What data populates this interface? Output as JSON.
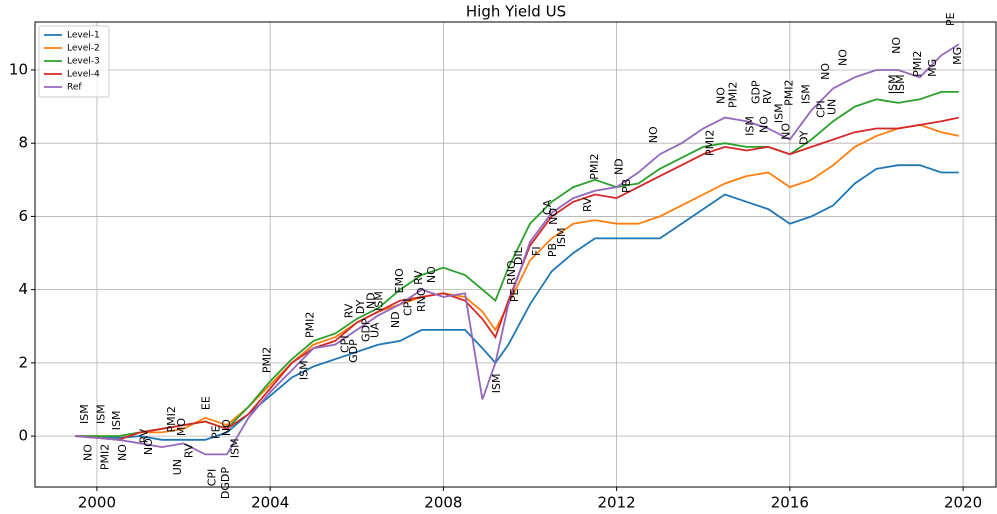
{
  "chart_data": {
    "type": "line",
    "title": "High Yield US",
    "x": [
      1999.5,
      2000,
      2000.5,
      2001,
      2001.5,
      2002,
      2002.5,
      2003,
      2003.5,
      2004,
      2004.5,
      2005,
      2005.5,
      2006,
      2006.5,
      2007,
      2007.5,
      2008,
      2008.5,
      2008.9,
      2009.2,
      2009.5,
      2010,
      2010.5,
      2011,
      2011.5,
      2012,
      2012.5,
      2013,
      2013.5,
      2014,
      2014.5,
      2015,
      2015.5,
      2016,
      2016.5,
      2017,
      2017.5,
      2018,
      2018.5,
      2019,
      2019.5,
      2019.9
    ],
    "series": [
      {
        "name": "Level-1",
        "color": "#1f77b4",
        "values": [
          0,
          0,
          -0.05,
          0,
          -0.1,
          -0.1,
          -0.1,
          0.1,
          0.6,
          1.1,
          1.6,
          1.9,
          2.1,
          2.3,
          2.5,
          2.6,
          2.9,
          2.9,
          2.9,
          2.4,
          2.0,
          2.5,
          3.6,
          4.5,
          5.0,
          5.4,
          5.4,
          5.4,
          5.4,
          5.8,
          6.2,
          6.6,
          6.4,
          6.2,
          5.8,
          6.0,
          6.3,
          6.9,
          7.3,
          7.4,
          7.4,
          7.2,
          7.2
        ]
      },
      {
        "name": "Level-2",
        "color": "#ff7f0e",
        "values": [
          0,
          0,
          0,
          0.1,
          0.1,
          0.2,
          0.5,
          0.3,
          0.8,
          1.4,
          2.0,
          2.5,
          2.7,
          3.1,
          3.4,
          3.6,
          3.8,
          3.9,
          3.8,
          3.4,
          2.9,
          3.6,
          4.8,
          5.4,
          5.8,
          5.9,
          5.8,
          5.8,
          6.0,
          6.3,
          6.6,
          6.9,
          7.1,
          7.2,
          6.8,
          7.0,
          7.4,
          7.9,
          8.2,
          8.4,
          8.5,
          8.3,
          8.2
        ]
      },
      {
        "name": "Level-3",
        "color": "#2ca02c",
        "values": [
          0,
          0,
          0,
          0.1,
          0.2,
          0.3,
          0.4,
          0.2,
          0.8,
          1.5,
          2.1,
          2.6,
          2.8,
          3.2,
          3.5,
          4.0,
          4.4,
          4.6,
          4.4,
          4.0,
          3.7,
          4.6,
          5.8,
          6.4,
          6.8,
          7.0,
          6.8,
          6.9,
          7.3,
          7.6,
          7.9,
          8.0,
          7.9,
          7.9,
          7.7,
          8.1,
          8.6,
          9.0,
          9.2,
          9.1,
          9.2,
          9.4,
          9.4
        ]
      },
      {
        "name": "Level-4",
        "color": "#d62728",
        "values": [
          0,
          -0.05,
          -0.1,
          0.1,
          0.2,
          0.3,
          0.4,
          0.2,
          0.6,
          1.3,
          2.0,
          2.4,
          2.6,
          3.1,
          3.4,
          3.7,
          3.8,
          3.9,
          3.7,
          3.2,
          2.7,
          3.7,
          5.2,
          6.0,
          6.4,
          6.6,
          6.5,
          6.8,
          7.1,
          7.4,
          7.7,
          7.9,
          7.8,
          7.9,
          7.7,
          7.9,
          8.1,
          8.3,
          8.4,
          8.4,
          8.5,
          8.6,
          8.7
        ]
      },
      {
        "name": "Ref",
        "color": "#9467bd",
        "values": [
          0,
          -0.05,
          -0.1,
          -0.2,
          -0.3,
          -0.2,
          -0.5,
          -0.5,
          0.5,
          1.2,
          1.8,
          2.4,
          2.5,
          2.9,
          3.3,
          3.6,
          4.0,
          3.8,
          3.9,
          1.0,
          2.0,
          3.6,
          5.3,
          6.1,
          6.5,
          6.7,
          6.8,
          7.2,
          7.7,
          8.0,
          8.4,
          8.7,
          8.6,
          8.4,
          8.1,
          8.9,
          9.5,
          9.8,
          10.0,
          10.0,
          9.8,
          10.4,
          10.7
        ]
      }
    ],
    "xlim": [
      1998.57,
      2020.76
    ],
    "xticks": [
      2000,
      2004,
      2008,
      2012,
      2016,
      2020
    ],
    "ylim": [
      -1.39,
      11.31
    ],
    "yticks": [
      0,
      2,
      4,
      6,
      8,
      10
    ],
    "grid": true,
    "legend": "upper left",
    "annotations": [
      {
        "text": "ISM",
        "x": 1999.72,
        "y": 0.33
      },
      {
        "text": "NO",
        "x": 1999.8,
        "y": -0.68
      },
      {
        "text": "ISM",
        "x": 2000.1,
        "y": 0.33
      },
      {
        "text": "PMI2",
        "x": 2000.2,
        "y": -0.93
      },
      {
        "text": "ISM",
        "x": 2000.46,
        "y": 0.16
      },
      {
        "text": "NO",
        "x": 2000.6,
        "y": -0.68
      },
      {
        "text": "RV",
        "x": 2001.1,
        "y": -0.2
      },
      {
        "text": "NO",
        "x": 2001.2,
        "y": -0.52
      },
      {
        "text": "PMI2",
        "x": 2001.73,
        "y": 0.1
      },
      {
        "text": "MO",
        "x": 2001.96,
        "y": 0
      },
      {
        "text": "UN",
        "x": 2001.87,
        "y": -1.07
      },
      {
        "text": "RV",
        "x": 2002.14,
        "y": -0.6
      },
      {
        "text": "EE",
        "x": 2002.53,
        "y": 0.71
      },
      {
        "text": "PE",
        "x": 2002.76,
        "y": -0.08
      },
      {
        "text": "NO",
        "x": 2003.0,
        "y": 0
      },
      {
        "text": "CPI",
        "x": 2002.67,
        "y": -1.37
      },
      {
        "text": "DGDP",
        "x": 2002.98,
        "y": -1.72
      },
      {
        "text": "ISM",
        "x": 2003.2,
        "y": -0.6
      },
      {
        "text": "PMI2",
        "x": 2003.94,
        "y": 1.72
      },
      {
        "text": "ISM",
        "x": 2004.79,
        "y": 1.53
      },
      {
        "text": "PMI2",
        "x": 2004.93,
        "y": 2.68
      },
      {
        "text": "RV",
        "x": 2005.83,
        "y": 3.22
      },
      {
        "text": "CPI",
        "x": 2005.74,
        "y": 2.27
      },
      {
        "text": "GDP",
        "x": 2005.94,
        "y": 2.0
      },
      {
        "text": "DY",
        "x": 2006.1,
        "y": 3.33
      },
      {
        "text": "GDP",
        "x": 2006.22,
        "y": 2.57
      },
      {
        "text": "ND",
        "x": 2006.34,
        "y": 3.47
      },
      {
        "text": "ISM",
        "x": 2006.52,
        "y": 3.42
      },
      {
        "text": "UA",
        "x": 2006.43,
        "y": 2.68
      },
      {
        "text": "ND",
        "x": 2006.91,
        "y": 2.95
      },
      {
        "text": "CPI",
        "x": 2007.19,
        "y": 3.28
      },
      {
        "text": "EMO",
        "x": 2007.0,
        "y": 3.9
      },
      {
        "text": "RV",
        "x": 2007.44,
        "y": 4.13
      },
      {
        "text": "RNO",
        "x": 2007.51,
        "y": 3.39
      },
      {
        "text": "NO",
        "x": 2007.74,
        "y": 4.18
      },
      {
        "text": "ISM",
        "x": 2009.24,
        "y": 1.17
      },
      {
        "text": "PE",
        "x": 2009.65,
        "y": 3.66
      },
      {
        "text": "RNO",
        "x": 2009.58,
        "y": 4.13
      },
      {
        "text": "DIL",
        "x": 2009.75,
        "y": 4.67
      },
      {
        "text": "FI",
        "x": 2010.16,
        "y": 4.92
      },
      {
        "text": "CA",
        "x": 2010.41,
        "y": 6.04
      },
      {
        "text": "NO",
        "x": 2010.55,
        "y": 5.77
      },
      {
        "text": "PB",
        "x": 2010.53,
        "y": 4.89
      },
      {
        "text": "ISM",
        "x": 2010.74,
        "y": 5.16
      },
      {
        "text": "PMI2",
        "x": 2011.5,
        "y": 7.0
      },
      {
        "text": "ND",
        "x": 2012.07,
        "y": 7.13
      },
      {
        "text": "RV",
        "x": 2011.34,
        "y": 6.12
      },
      {
        "text": "PB",
        "x": 2012.24,
        "y": 6.64
      },
      {
        "text": "NO",
        "x": 2012.86,
        "y": 8.0
      },
      {
        "text": "PMI2",
        "x": 2014.17,
        "y": 7.65
      },
      {
        "text": "NO",
        "x": 2014.42,
        "y": 9.07
      },
      {
        "text": "PMI2",
        "x": 2014.7,
        "y": 8.96
      },
      {
        "text": "ISM",
        "x": 2015.09,
        "y": 8.2
      },
      {
        "text": "GDP",
        "x": 2015.23,
        "y": 9.07
      },
      {
        "text": "RV",
        "x": 2015.5,
        "y": 9.07
      },
      {
        "text": "NO",
        "x": 2015.41,
        "y": 8.28
      },
      {
        "text": "ISM",
        "x": 2015.76,
        "y": 8.55
      },
      {
        "text": "NO",
        "x": 2015.92,
        "y": 8.09
      },
      {
        "text": "PMI2",
        "x": 2015.99,
        "y": 9.02
      },
      {
        "text": "ISM",
        "x": 2016.38,
        "y": 9.07
      },
      {
        "text": "DY",
        "x": 2016.34,
        "y": 7.95
      },
      {
        "text": "CPI",
        "x": 2016.73,
        "y": 8.69
      },
      {
        "text": "UN",
        "x": 2016.98,
        "y": 8.77
      },
      {
        "text": "NO",
        "x": 2016.84,
        "y": 9.73
      },
      {
        "text": "NO",
        "x": 2017.24,
        "y": 10.11
      },
      {
        "text": "NO",
        "x": 2018.48,
        "y": 10.44
      },
      {
        "text": "ISM",
        "x": 2018.39,
        "y": 9.34
      },
      {
        "text": "ISM",
        "x": 2018.57,
        "y": 9.34
      },
      {
        "text": "PMI2",
        "x": 2018.96,
        "y": 9.81
      },
      {
        "text": "MG",
        "x": 2019.31,
        "y": 9.81
      },
      {
        "text": "PE",
        "x": 2019.72,
        "y": 11.2
      },
      {
        "text": "MG",
        "x": 2019.88,
        "y": 10.14
      }
    ]
  }
}
